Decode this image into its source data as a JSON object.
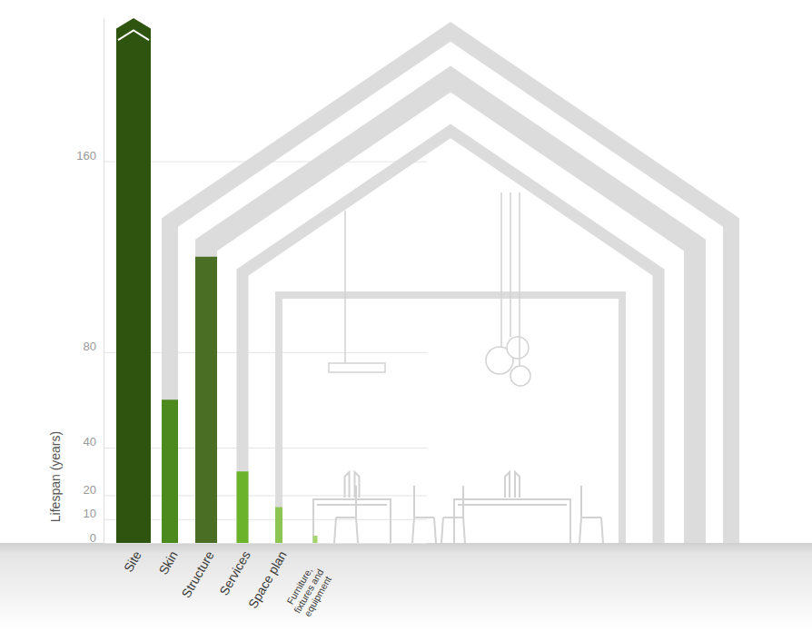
{
  "chart_data": {
    "type": "bar",
    "categories": [
      "Site",
      "Skin",
      "Structure",
      "Services",
      "Space plan",
      "Furniture, fixtures and equipment"
    ],
    "values": [
      220,
      60,
      120,
      30,
      15,
      3
    ],
    "colors": [
      "#2e5410",
      "#4d8a1e",
      "#4b6e25",
      "#6bb32a",
      "#8cc552",
      "#a3d36a"
    ],
    "y_label": "Lifespan (years)",
    "ylim": [
      0,
      220
    ],
    "yticks": [
      0,
      10,
      20,
      40,
      80,
      160
    ],
    "grid": true
  }
}
